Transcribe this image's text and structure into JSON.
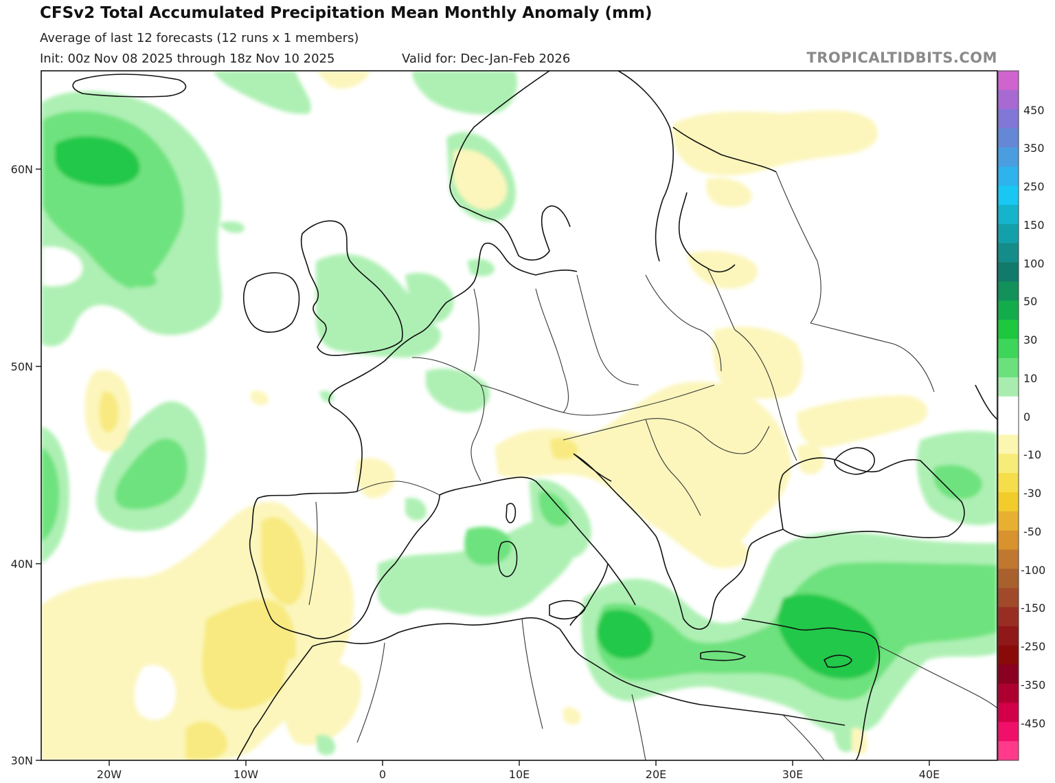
{
  "header": {
    "title": "CFSv2 Total Accumulated Precipitation Mean Monthly Anomaly (mm)",
    "subtitle": "Average of last 12 forecasts (12 runs x 1 members)",
    "init": "Init: 00z Nov 08 2025 through 18z Nov 10 2025",
    "valid": "Valid for: Dec-Jan-Feb 2026",
    "credit": "TROPICALTIDBITS.COM"
  },
  "map": {
    "lat_labels": [
      "60N",
      "50N",
      "40N",
      "30N"
    ],
    "lon_labels": [
      "20W",
      "10W",
      "0",
      "10E",
      "20E",
      "30E",
      "40E"
    ],
    "extent": {
      "lon": [
        -25,
        45
      ],
      "lat": [
        30,
        65
      ]
    }
  },
  "colorbar": {
    "labels": [
      "450",
      "350",
      "250",
      "150",
      "100",
      "50",
      "30",
      "10",
      "0",
      "-10",
      "-30",
      "-50",
      "-100",
      "-150",
      "-250",
      "-350",
      "-450"
    ],
    "colors": [
      "#cf64cf",
      "#a66ad2",
      "#8077d6",
      "#6488d6",
      "#4a9ee0",
      "#2fb3ec",
      "#18c8f2",
      "#16b4cc",
      "#14a0aa",
      "#148c8a",
      "#127a6a",
      "#12915a",
      "#13ac4c",
      "#1dc83e",
      "#3ed65a",
      "#6be07c",
      "#a8ecb0",
      "#ffffff",
      "#ffffff",
      "#fbf6b0",
      "#f7ec78",
      "#f5de4a",
      "#f2cc2a",
      "#e8b030",
      "#d8922e",
      "#c07830",
      "#a8602c",
      "#a04a2a",
      "#982e22",
      "#901818",
      "#8a0a0a",
      "#8a0020",
      "#ae0030",
      "#d20048",
      "#f0106a",
      "#ff3a8a"
    ]
  },
  "palette": {
    "green_light": "#aef0b4",
    "green_mid": "#6ee27e",
    "green_dark": "#22c84a",
    "yellow_light": "#fcf6bc",
    "yellow_mid": "#f8ea80"
  }
}
